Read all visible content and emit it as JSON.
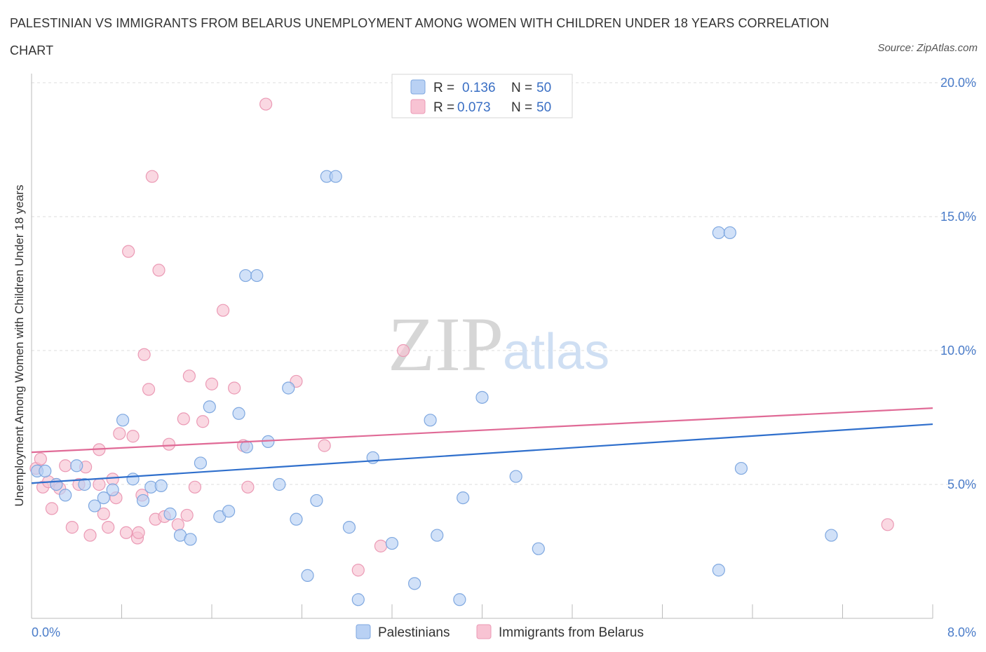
{
  "header": {
    "title": "PALESTINIAN VS IMMIGRANTS FROM BELARUS UNEMPLOYMENT AMONG WOMEN WITH CHILDREN UNDER 18 YEARS CORRELATION CHART",
    "source": "Source: ZipAtlas.com"
  },
  "legend_top": {
    "rows": [
      {
        "r_label": "R =",
        "r_value": "0.136",
        "n_label": "N =",
        "n_value": "50"
      },
      {
        "r_label": "R =",
        "r_value": "0.073",
        "n_label": "N =",
        "n_value": "50"
      }
    ]
  },
  "watermark": {
    "zip": "ZIP",
    "atlas": "atlas"
  },
  "chart_data": {
    "type": "scatter",
    "title": "PALESTINIAN VS IMMIGRANTS FROM BELARUS UNEMPLOYMENT AMONG WOMEN WITH CHILDREN UNDER 18 YEARS CORRELATION CHART",
    "xlabel": "",
    "ylabel": "Unemployment Among Women with Children Under 18 years",
    "xlim": [
      0,
      8
    ],
    "ylim": [
      0,
      20
    ],
    "x_tick_labels": [
      "0.0%",
      "8.0%"
    ],
    "y_ticks": [
      5,
      10,
      15,
      20
    ],
    "y_tick_labels": [
      "5.0%",
      "10.0%",
      "15.0%",
      "20.0%"
    ],
    "grid": true,
    "legend_position": "top-center",
    "colors": {
      "palestinians_fill": "#b9d1f4",
      "palestinians_stroke": "#7fa8e0",
      "palestinians_line": "#2f6fcc",
      "belarus_fill": "#f8c3d3",
      "belarus_stroke": "#eb9ab5",
      "belarus_line": "#e06a96"
    },
    "series": [
      {
        "name": "Palestinians",
        "r": 0.136,
        "n": 50,
        "trend": {
          "x": [
            0,
            8
          ],
          "y": [
            5.05,
            7.25
          ]
        },
        "points": [
          [
            0.05,
            5.5
          ],
          [
            0.12,
            5.5
          ],
          [
            0.22,
            5.0
          ],
          [
            0.3,
            4.6
          ],
          [
            0.4,
            5.7
          ],
          [
            0.47,
            5.0
          ],
          [
            0.56,
            4.2
          ],
          [
            0.64,
            4.5
          ],
          [
            0.72,
            4.8
          ],
          [
            0.81,
            7.4
          ],
          [
            0.9,
            5.2
          ],
          [
            0.99,
            4.4
          ],
          [
            1.06,
            4.9
          ],
          [
            1.15,
            4.95
          ],
          [
            1.23,
            3.9
          ],
          [
            1.32,
            3.1
          ],
          [
            1.41,
            2.95
          ],
          [
            1.5,
            5.8
          ],
          [
            1.58,
            7.9
          ],
          [
            1.67,
            3.8
          ],
          [
            1.75,
            4.0
          ],
          [
            1.84,
            7.65
          ],
          [
            1.91,
            6.4
          ],
          [
            1.9,
            12.8
          ],
          [
            2.0,
            12.8
          ],
          [
            2.1,
            6.6
          ],
          [
            2.2,
            5.0
          ],
          [
            2.28,
            8.6
          ],
          [
            2.35,
            3.7
          ],
          [
            2.45,
            1.6
          ],
          [
            2.53,
            4.4
          ],
          [
            2.62,
            16.5
          ],
          [
            2.7,
            16.5
          ],
          [
            2.82,
            3.4
          ],
          [
            2.9,
            0.7
          ],
          [
            3.03,
            6.0
          ],
          [
            3.2,
            2.8
          ],
          [
            3.4,
            1.3
          ],
          [
            3.54,
            7.4
          ],
          [
            3.6,
            3.1
          ],
          [
            3.8,
            0.7
          ],
          [
            3.83,
            4.5
          ],
          [
            4.0,
            8.25
          ],
          [
            4.3,
            5.3
          ],
          [
            4.5,
            2.6
          ],
          [
            6.1,
            14.4
          ],
          [
            6.2,
            14.4
          ],
          [
            6.1,
            1.8
          ],
          [
            6.3,
            5.6
          ],
          [
            7.1,
            3.1
          ]
        ]
      },
      {
        "name": "Immigrants from Belarus",
        "r": 0.073,
        "n": 50,
        "trend": {
          "x": [
            0,
            8
          ],
          "y": [
            6.2,
            7.85
          ]
        },
        "points": [
          [
            0.04,
            5.6
          ],
          [
            0.1,
            4.9
          ],
          [
            0.18,
            4.1
          ],
          [
            0.22,
            5.0
          ],
          [
            0.3,
            5.7
          ],
          [
            0.36,
            3.4
          ],
          [
            0.42,
            5.0
          ],
          [
            0.48,
            5.65
          ],
          [
            0.52,
            3.1
          ],
          [
            0.6,
            6.3
          ],
          [
            0.64,
            3.9
          ],
          [
            0.68,
            3.4
          ],
          [
            0.72,
            5.2
          ],
          [
            0.75,
            4.5
          ],
          [
            0.78,
            6.9
          ],
          [
            0.84,
            3.2
          ],
          [
            0.86,
            13.7
          ],
          [
            0.9,
            6.8
          ],
          [
            0.94,
            3.0
          ],
          [
            0.98,
            4.6
          ],
          [
            1.0,
            9.85
          ],
          [
            1.04,
            8.55
          ],
          [
            1.07,
            16.5
          ],
          [
            1.1,
            3.7
          ],
          [
            1.13,
            13.0
          ],
          [
            1.18,
            3.8
          ],
          [
            1.22,
            6.5
          ],
          [
            1.3,
            3.5
          ],
          [
            1.35,
            7.45
          ],
          [
            1.4,
            9.05
          ],
          [
            1.45,
            4.9
          ],
          [
            1.52,
            7.35
          ],
          [
            1.6,
            8.75
          ],
          [
            1.7,
            11.5
          ],
          [
            1.8,
            8.6
          ],
          [
            1.88,
            6.45
          ],
          [
            1.92,
            4.9
          ],
          [
            2.08,
            19.2
          ],
          [
            2.35,
            8.85
          ],
          [
            2.6,
            6.45
          ],
          [
            2.9,
            1.8
          ],
          [
            3.1,
            2.7
          ],
          [
            3.3,
            10.0
          ],
          [
            0.08,
            5.95
          ],
          [
            0.25,
            4.85
          ],
          [
            0.6,
            5.0
          ],
          [
            1.38,
            3.85
          ],
          [
            0.95,
            3.2
          ],
          [
            0.15,
            5.1
          ],
          [
            7.6,
            3.5
          ]
        ]
      }
    ]
  },
  "bottom_legend": {
    "items": [
      {
        "label": "Palestinians"
      },
      {
        "label": "Immigrants from Belarus"
      }
    ]
  }
}
